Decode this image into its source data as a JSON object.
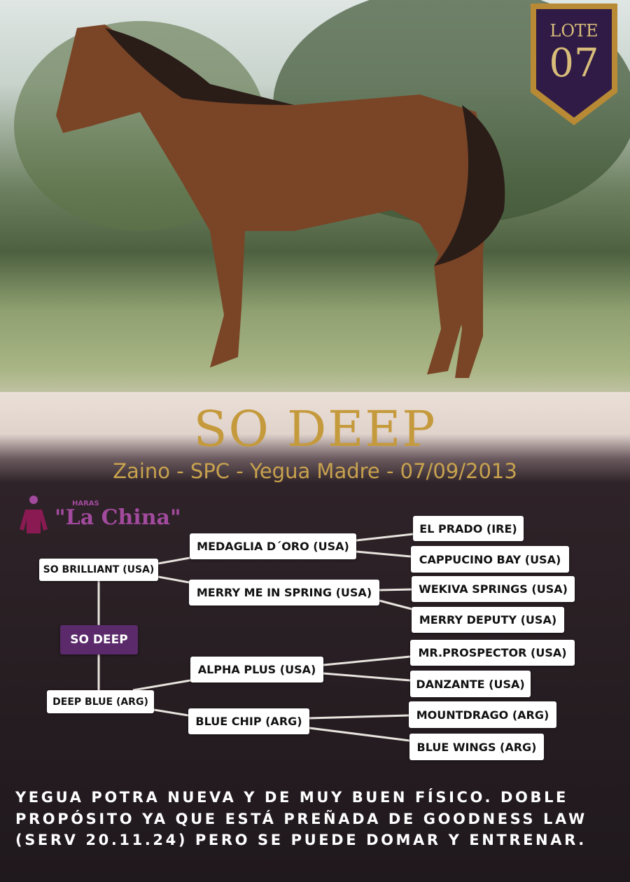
{
  "lot": {
    "label": "LOTE",
    "number": "07"
  },
  "horse": {
    "name": "SO DEEP",
    "details": "Zaino - SPC - Yegua Madre - 07/09/2013"
  },
  "logo": {
    "small": "HARAS",
    "name": "\"La China\""
  },
  "pedigree": {
    "subject": "SO DEEP",
    "sire": "SO BRILLIANT (USA)",
    "dam": "DEEP BLUE (ARG)",
    "sire_sire": "MEDAGLIA D´ORO (USA)",
    "sire_dam": "MERRY ME IN SPRING (USA)",
    "dam_sire": "ALPHA PLUS (USA)",
    "dam_dam": "BLUE CHIP (ARG)",
    "g3": [
      "EL PRADO (IRE)",
      "CAPPUCINO BAY (USA)",
      "WEKIVA SPRINGS (USA)",
      "MERRY DEPUTY (USA)",
      "MR.PROSPECTOR (USA)",
      "DANZANTE (USA)",
      "MOUNTDRAGO (ARG)",
      "BLUE WINGS (ARG)"
    ]
  },
  "description": "YEGUA POTRA NUEVA Y DE MUY BUEN FÍSICO. DOBLE PROPÓSITO YA QUE ESTÁ PREÑADA DE GOODNESS LAW (SERV 20.11.24) PERO SE PUEDE DOMAR Y ENTRENAR.",
  "colors": {
    "gold": "#c59a3c",
    "purple": "#5b2a6b",
    "logo": "#a24a9d"
  }
}
